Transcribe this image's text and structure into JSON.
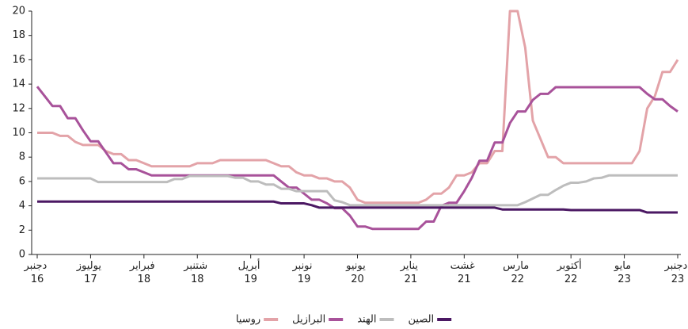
{
  "chart_data": {
    "type": "line",
    "categories": [
      "دجنبر 16",
      null,
      null,
      null,
      null,
      null,
      null,
      "يوليوز 17",
      null,
      null,
      null,
      null,
      null,
      null,
      "فبراير 18",
      null,
      null,
      null,
      null,
      null,
      null,
      "شتنبر 18",
      null,
      null,
      null,
      null,
      null,
      null,
      "أبريل 19",
      null,
      null,
      null,
      null,
      null,
      null,
      "نونبر 19",
      null,
      null,
      null,
      null,
      null,
      null,
      "يونيو 20",
      null,
      null,
      null,
      null,
      null,
      null,
      "يناير 21",
      null,
      null,
      null,
      null,
      null,
      null,
      "غشت 21",
      null,
      null,
      null,
      null,
      null,
      null,
      "مارس 22",
      null,
      null,
      null,
      null,
      null,
      null,
      "أكتوبر 22",
      null,
      null,
      null,
      null,
      null,
      null,
      "مايو 23",
      null,
      null,
      null,
      null,
      null,
      null,
      "دجنبر 23"
    ],
    "series": [
      {
        "name": "روسيا",
        "color": "#e3a3a8",
        "values": [
          10.0,
          10.0,
          10.0,
          9.75,
          9.75,
          9.25,
          9.0,
          9.0,
          9.0,
          8.5,
          8.25,
          8.25,
          7.75,
          7.75,
          7.5,
          7.25,
          7.25,
          7.25,
          7.25,
          7.25,
          7.25,
          7.5,
          7.5,
          7.5,
          7.75,
          7.75,
          7.75,
          7.75,
          7.75,
          7.75,
          7.75,
          7.5,
          7.25,
          7.25,
          6.75,
          6.5,
          6.5,
          6.25,
          6.25,
          6.0,
          6.0,
          5.5,
          4.5,
          4.25,
          4.25,
          4.25,
          4.25,
          4.25,
          4.25,
          4.25,
          4.25,
          4.5,
          5.0,
          5.0,
          5.5,
          6.5,
          6.5,
          6.75,
          7.5,
          7.5,
          8.5,
          8.5,
          20,
          20,
          17,
          11,
          9.5,
          8.0,
          8.0,
          7.5,
          7.5,
          7.5,
          7.5,
          7.5,
          7.5,
          7.5,
          7.5,
          7.5,
          7.5,
          8.5,
          12,
          13,
          15,
          15,
          16
        ]
      },
      {
        "name": "البرازيل",
        "color": "#a8529a",
        "values": [
          13.8,
          13.0,
          12.2,
          12.2,
          11.2,
          11.2,
          10.2,
          9.3,
          9.3,
          8.4,
          7.5,
          7.5,
          7.0,
          7.0,
          6.75,
          6.5,
          6.5,
          6.5,
          6.5,
          6.5,
          6.5,
          6.5,
          6.5,
          6.5,
          6.5,
          6.5,
          6.5,
          6.5,
          6.5,
          6.5,
          6.5,
          6.5,
          6.0,
          5.5,
          5.5,
          5.0,
          4.5,
          4.5,
          4.2,
          3.8,
          3.8,
          3.2,
          2.3,
          2.3,
          2.1,
          2.1,
          2.1,
          2.1,
          2.1,
          2.1,
          2.1,
          2.7,
          2.7,
          4.0,
          4.25,
          4.25,
          5.2,
          6.3,
          7.7,
          7.7,
          9.2,
          9.2,
          10.8,
          11.75,
          11.75,
          12.7,
          13.2,
          13.2,
          13.75,
          13.75,
          13.75,
          13.75,
          13.75,
          13.75,
          13.75,
          13.75,
          13.75,
          13.75,
          13.75,
          13.75,
          13.2,
          12.75,
          12.75,
          12.2,
          11.75
        ]
      },
      {
        "name": "الهند",
        "color": "#bdbdbd",
        "values": [
          6.25,
          6.25,
          6.25,
          6.25,
          6.25,
          6.25,
          6.25,
          6.25,
          5.95,
          5.95,
          5.95,
          5.95,
          5.95,
          5.95,
          5.95,
          5.95,
          5.95,
          5.95,
          6.2,
          6.2,
          6.45,
          6.45,
          6.45,
          6.45,
          6.45,
          6.45,
          6.3,
          6.3,
          6.0,
          6.0,
          5.75,
          5.75,
          5.4,
          5.4,
          5.2,
          5.2,
          5.2,
          5.2,
          5.2,
          4.45,
          4.3,
          4.05,
          4.05,
          4.05,
          4.05,
          4.05,
          4.05,
          4.05,
          4.05,
          4.05,
          4.05,
          4.05,
          4.05,
          4.05,
          4.05,
          4.05,
          4.05,
          4.05,
          4.05,
          4.05,
          4.05,
          4.05,
          4.05,
          4.05,
          4.3,
          4.6,
          4.9,
          4.9,
          5.3,
          5.65,
          5.9,
          5.9,
          6.0,
          6.25,
          6.3,
          6.5,
          6.5,
          6.5,
          6.5,
          6.5,
          6.5,
          6.5,
          6.5,
          6.5,
          6.5
        ]
      },
      {
        "name": "الصين",
        "color": "#4b1863",
        "values": [
          4.35,
          4.35,
          4.35,
          4.35,
          4.35,
          4.35,
          4.35,
          4.35,
          4.35,
          4.35,
          4.35,
          4.35,
          4.35,
          4.35,
          4.35,
          4.35,
          4.35,
          4.35,
          4.35,
          4.35,
          4.35,
          4.35,
          4.35,
          4.35,
          4.35,
          4.35,
          4.35,
          4.35,
          4.35,
          4.35,
          4.35,
          4.35,
          4.2,
          4.2,
          4.2,
          4.2,
          4.05,
          3.85,
          3.85,
          3.85,
          3.85,
          3.85,
          3.85,
          3.85,
          3.85,
          3.85,
          3.85,
          3.85,
          3.85,
          3.85,
          3.85,
          3.85,
          3.85,
          3.85,
          3.85,
          3.85,
          3.85,
          3.85,
          3.85,
          3.85,
          3.85,
          3.7,
          3.7,
          3.7,
          3.7,
          3.7,
          3.7,
          3.7,
          3.7,
          3.7,
          3.65,
          3.65,
          3.65,
          3.65,
          3.65,
          3.65,
          3.65,
          3.65,
          3.65,
          3.65,
          3.45,
          3.45,
          3.45,
          3.45,
          3.45
        ]
      }
    ],
    "ylim": [
      0,
      20
    ],
    "yticks": [
      0,
      2,
      4,
      6,
      8,
      10,
      12,
      14,
      16,
      18,
      20
    ],
    "grid": false,
    "legend": "bottom"
  }
}
